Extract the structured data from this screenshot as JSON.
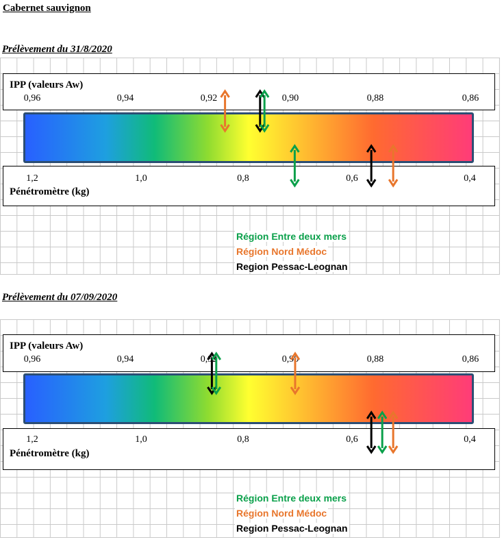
{
  "page_title": "Cabernet sauvignon",
  "colors": {
    "green": "#0aa04a",
    "orange": "#e8762c",
    "black": "#000000"
  },
  "chart_data": [
    {
      "type": "scale-markers",
      "title": "Prélèvement du 31/8/2020",
      "ipp_label": "IPP (valeurs Aw)",
      "ipp_ticks": [
        "0,96",
        "0,94",
        "0,92",
        "0,90",
        "0,88",
        "0,86"
      ],
      "ipp_range": [
        0.96,
        0.86
      ],
      "pen_label": "Pénétromètre (kg)",
      "pen_ticks": [
        "1,2",
        "1,0",
        "0,8",
        "0,6",
        "0,4"
      ],
      "pen_range": [
        1.2,
        0.4
      ],
      "markers": [
        {
          "series": "Région Nord Médoc",
          "scale": "ipp",
          "value": 0.916
        },
        {
          "series": "Region Pessac-Leognan",
          "scale": "ipp",
          "value": 0.908
        },
        {
          "series": "Région Entre deux mers",
          "scale": "ipp",
          "value": 0.907
        },
        {
          "series": "Région Entre deux mers",
          "scale": "pen",
          "value": 0.72
        },
        {
          "series": "Region Pessac-Leognan",
          "scale": "pen",
          "value": 0.58
        },
        {
          "series": "Région Nord Médoc",
          "scale": "pen",
          "value": 0.54
        }
      ],
      "legend": [
        "Région Entre deux mers",
        "Région Nord Médoc",
        "Region Pessac-Leognan"
      ]
    },
    {
      "type": "scale-markers",
      "title": "Prélèvement du 07/09/2020",
      "ipp_label": "IPP (valeurs Aw)",
      "ipp_ticks": [
        "0,96",
        "0,94",
        "0,92",
        "0,90",
        "0,88",
        "0,86"
      ],
      "ipp_range": [
        0.96,
        0.86
      ],
      "pen_label": "Pénétromètre (kg)",
      "pen_ticks": [
        "1,2",
        "1,0",
        "0,8",
        "0,6",
        "0,4"
      ],
      "pen_range": [
        1.2,
        0.4
      ],
      "markers": [
        {
          "series": "Region Pessac-Leognan",
          "scale": "ipp",
          "value": 0.919
        },
        {
          "series": "Région Entre deux mers",
          "scale": "ipp",
          "value": 0.918
        },
        {
          "series": "Région Nord Médoc",
          "scale": "ipp",
          "value": 0.9
        },
        {
          "series": "Region Pessac-Leognan",
          "scale": "pen",
          "value": 0.58
        },
        {
          "series": "Région Entre deux mers",
          "scale": "pen",
          "value": 0.56
        },
        {
          "series": "Région Nord Médoc",
          "scale": "pen",
          "value": 0.54
        }
      ],
      "legend": [
        "Région Entre deux mers",
        "Région Nord Médoc",
        "Region Pessac-Leognan"
      ]
    }
  ]
}
